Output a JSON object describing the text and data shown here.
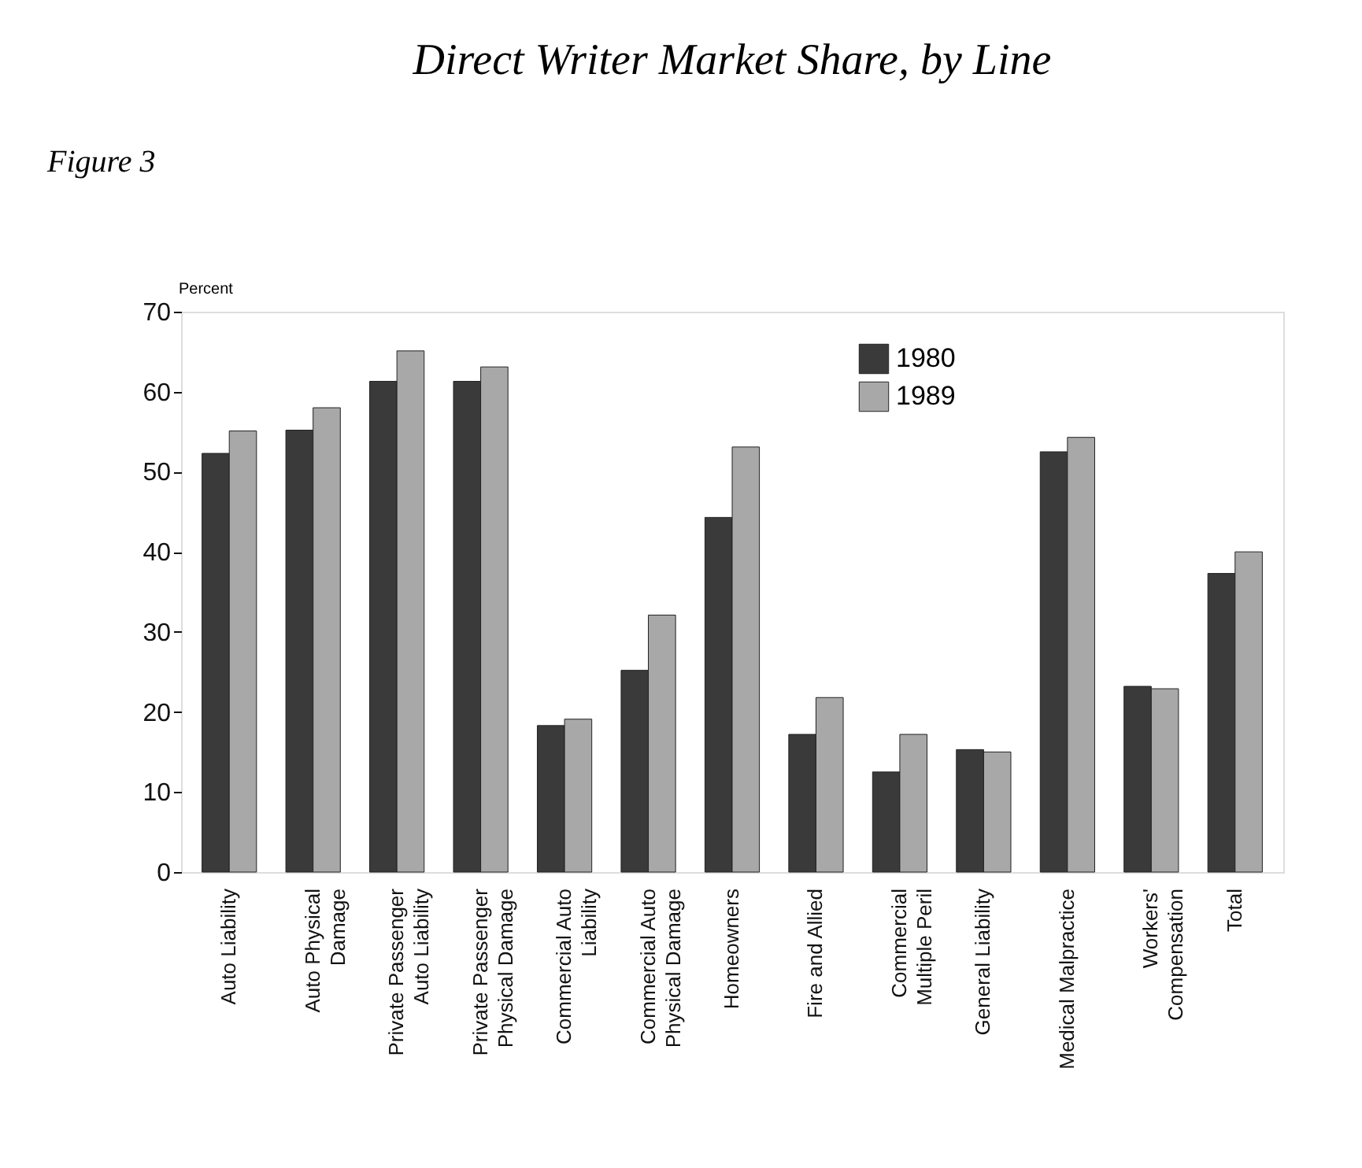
{
  "chart_data": {
    "type": "bar",
    "title": "Direct Writer Market Share, by Line",
    "ylabel": "Percent",
    "categories": [
      "Auto Liability",
      "Auto Physical Damage",
      "Private Passenger Auto Liability",
      "Private Passenger Physical Damage",
      "Commercial Auto Liability",
      "Commercial Auto Physical Damage",
      "Homeowners",
      "Fire and Allied",
      "Commercial Multiple Peril",
      "General Liability",
      "Medical Malpractice",
      "Workers' Compensation",
      "Total"
    ],
    "series": [
      {
        "name": "1980",
        "color": "#3a3a3a",
        "values": [
          52.3,
          55.2,
          61.3,
          61.3,
          18.3,
          25.2,
          44.3,
          17.2,
          12.5,
          15.3,
          52.5,
          23.2,
          37.3
        ]
      },
      {
        "name": "1989",
        "color": "#a8a8a8",
        "values": [
          55.1,
          58.0,
          65.1,
          63.1,
          19.1,
          32.1,
          53.1,
          21.8,
          17.2,
          15.0,
          54.3,
          22.9,
          40.0
        ]
      }
    ],
    "ylim": [
      0,
      70
    ],
    "yticks": [
      0,
      10,
      20,
      30,
      40,
      50,
      60,
      70
    ],
    "legend": "top right",
    "grid": false,
    "annotations": [
      "Figure 3"
    ]
  }
}
